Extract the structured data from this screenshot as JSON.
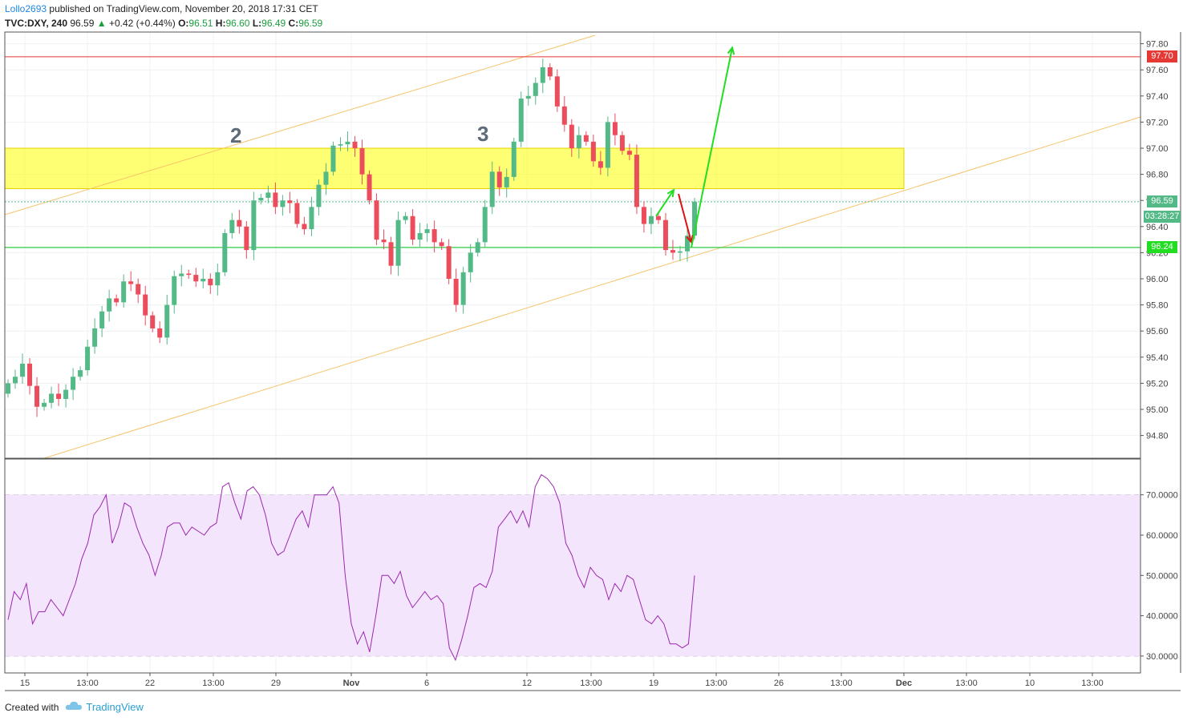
{
  "header": {
    "author": "Lollo2693",
    "published_text": "published on TradingView.com, November 20, 2018 17:31 CET",
    "symbol": "TVC:DXY, 240",
    "last": "96.59",
    "change": "+0.42 (+0.44%)",
    "o_label": "O:",
    "o_value": "96.51",
    "h_label": "H:",
    "h_value": "96.60",
    "l_label": "L:",
    "l_value": "96.49",
    "c_label": "C:",
    "c_value": "96.59"
  },
  "footer": {
    "created_with": "Created with",
    "brand": "TradingView"
  },
  "annotations": {
    "wave2": "2",
    "wave3": "3"
  },
  "price_tags": {
    "resistance": "97.70",
    "last_price": "96.59",
    "countdown": "03:28:27",
    "support": "96.24"
  },
  "colors": {
    "bull": "#53b987",
    "bear": "#eb4d5c",
    "resistance_line": "#e53935",
    "support_line": "#2ecc40",
    "zone": "#ffff00",
    "channel": "#f5c46b",
    "rsi": "#9c27b0",
    "arrow_up": "#22dd22",
    "arrow_down": "#dd1111"
  },
  "chart_data": [
    {
      "type": "candlestick",
      "title": "TVC:DXY, 240",
      "price_axis_ticks": [
        "97.80",
        "97.60",
        "97.40",
        "97.20",
        "97.00",
        "96.80",
        "96.60",
        "96.40",
        "96.20",
        "96.00",
        "95.80",
        "95.60",
        "95.40",
        "95.20",
        "95.00",
        "94.80"
      ],
      "ylim": [
        94.64,
        97.88
      ],
      "time_axis_ticks": [
        "15",
        "13:00",
        "22",
        "13:00",
        "29",
        "Nov",
        "6",
        "12",
        "13:00",
        "19",
        "13:00",
        "26",
        "13:00",
        "Dec",
        "13:00",
        "10",
        "13:00"
      ],
      "levels": {
        "resistance": 97.7,
        "support": 96.24,
        "last_price": 96.59
      },
      "supply_zone": {
        "low": 96.69,
        "high": 97.0
      },
      "close_series": [
        95.2,
        95.25,
        95.35,
        95.18,
        95.02,
        95.05,
        95.12,
        95.08,
        95.15,
        95.25,
        95.3,
        95.48,
        95.62,
        95.75,
        95.85,
        95.82,
        95.98,
        95.96,
        95.88,
        95.72,
        95.62,
        95.55,
        95.8,
        96.02,
        96.04,
        96.03,
        95.98,
        96.0,
        95.95,
        96.05,
        96.35,
        96.45,
        96.4,
        96.22,
        96.6,
        96.62,
        96.66,
        96.55,
        96.6,
        96.58,
        96.42,
        96.38,
        96.55,
        96.72,
        96.82,
        97.02,
        97.03,
        97.05,
        97.0,
        96.8,
        96.6,
        96.3,
        96.28,
        96.1,
        96.45,
        96.48,
        96.3,
        96.35,
        96.38,
        96.28,
        96.25,
        96.0,
        95.8,
        96.05,
        96.2,
        96.28,
        96.55,
        96.82,
        96.7,
        96.78,
        97.05,
        97.38,
        97.4,
        97.5,
        97.62,
        97.55,
        97.32,
        97.18,
        97.0,
        97.1,
        97.05,
        96.9,
        96.85,
        97.2,
        97.1,
        96.98,
        96.95,
        96.55,
        96.42,
        96.48,
        96.45,
        96.22,
        96.2,
        96.21,
        96.33,
        96.59
      ],
      "drawings": [
        {
          "kind": "arrow",
          "direction": "up",
          "from_price": 96.48,
          "to_price": 96.68
        },
        {
          "kind": "arrow",
          "direction": "down",
          "from_price": 96.65,
          "to_price": 96.28
        },
        {
          "kind": "arrow",
          "direction": "up",
          "from_price": 96.24,
          "to_price": 97.77
        }
      ]
    },
    {
      "type": "line",
      "title": "RSI",
      "ytick_labels": [
        "70.0000",
        "60.0000",
        "50.0000",
        "40.0000",
        "30.0000"
      ],
      "ylim": [
        28,
        77
      ],
      "band": [
        30,
        70
      ],
      "values": [
        39,
        46,
        44,
        48,
        38,
        41,
        41,
        44,
        42,
        40,
        44,
        48,
        54,
        58,
        65,
        67,
        70,
        58,
        62,
        68,
        67,
        62,
        58,
        55,
        50,
        55,
        62,
        63,
        63,
        60,
        62,
        61,
        60,
        62,
        63,
        72,
        73,
        68,
        64,
        71,
        72,
        70,
        65,
        58,
        55,
        56,
        60,
        64,
        66,
        62,
        70,
        70,
        70,
        72,
        68,
        50,
        38,
        33,
        36,
        31,
        40,
        50,
        50,
        48,
        51,
        45,
        42,
        44,
        46,
        44,
        45,
        43,
        32,
        29,
        34,
        40,
        47,
        48,
        47,
        51,
        62,
        64,
        66,
        63,
        66,
        62,
        72,
        75,
        74,
        72,
        68,
        58,
        55,
        50,
        47,
        52,
        50,
        49,
        44,
        48,
        46,
        50,
        49,
        44,
        39,
        38,
        40,
        38,
        33,
        33,
        32,
        33,
        50
      ]
    }
  ]
}
